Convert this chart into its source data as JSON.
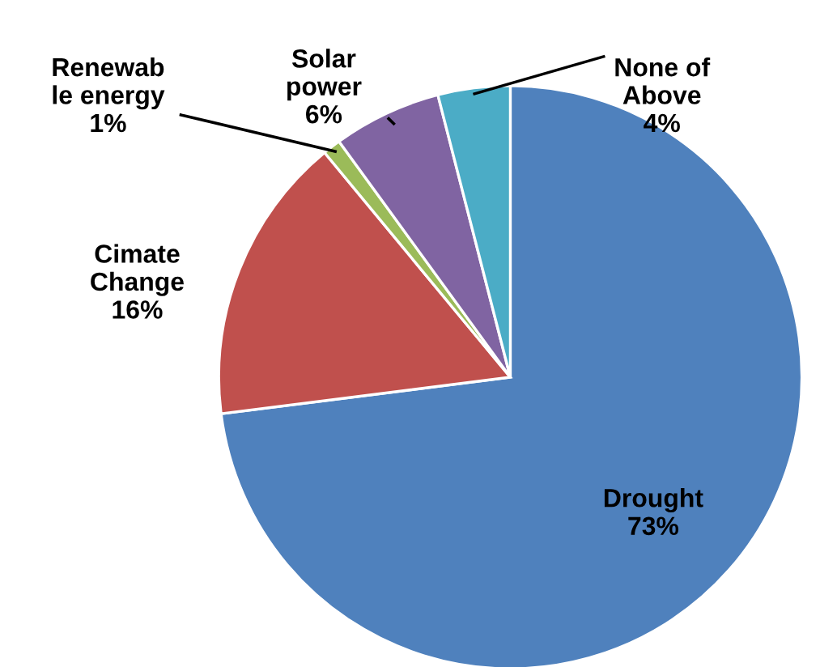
{
  "chart_data": {
    "type": "pie",
    "categories": [
      "Drought",
      "Cimate\nChange",
      "Renewab\nle energy",
      "Solar\npower",
      "None of\nAbove"
    ],
    "values": [
      73,
      16,
      1,
      6,
      4
    ],
    "value_labels": [
      "73%",
      "16%",
      "1%",
      "6%",
      "4%"
    ],
    "colors": [
      "#4f81bd",
      "#c0504d",
      "#9bbb59",
      "#8064a2",
      "#4bacc6"
    ],
    "legend": false
  }
}
